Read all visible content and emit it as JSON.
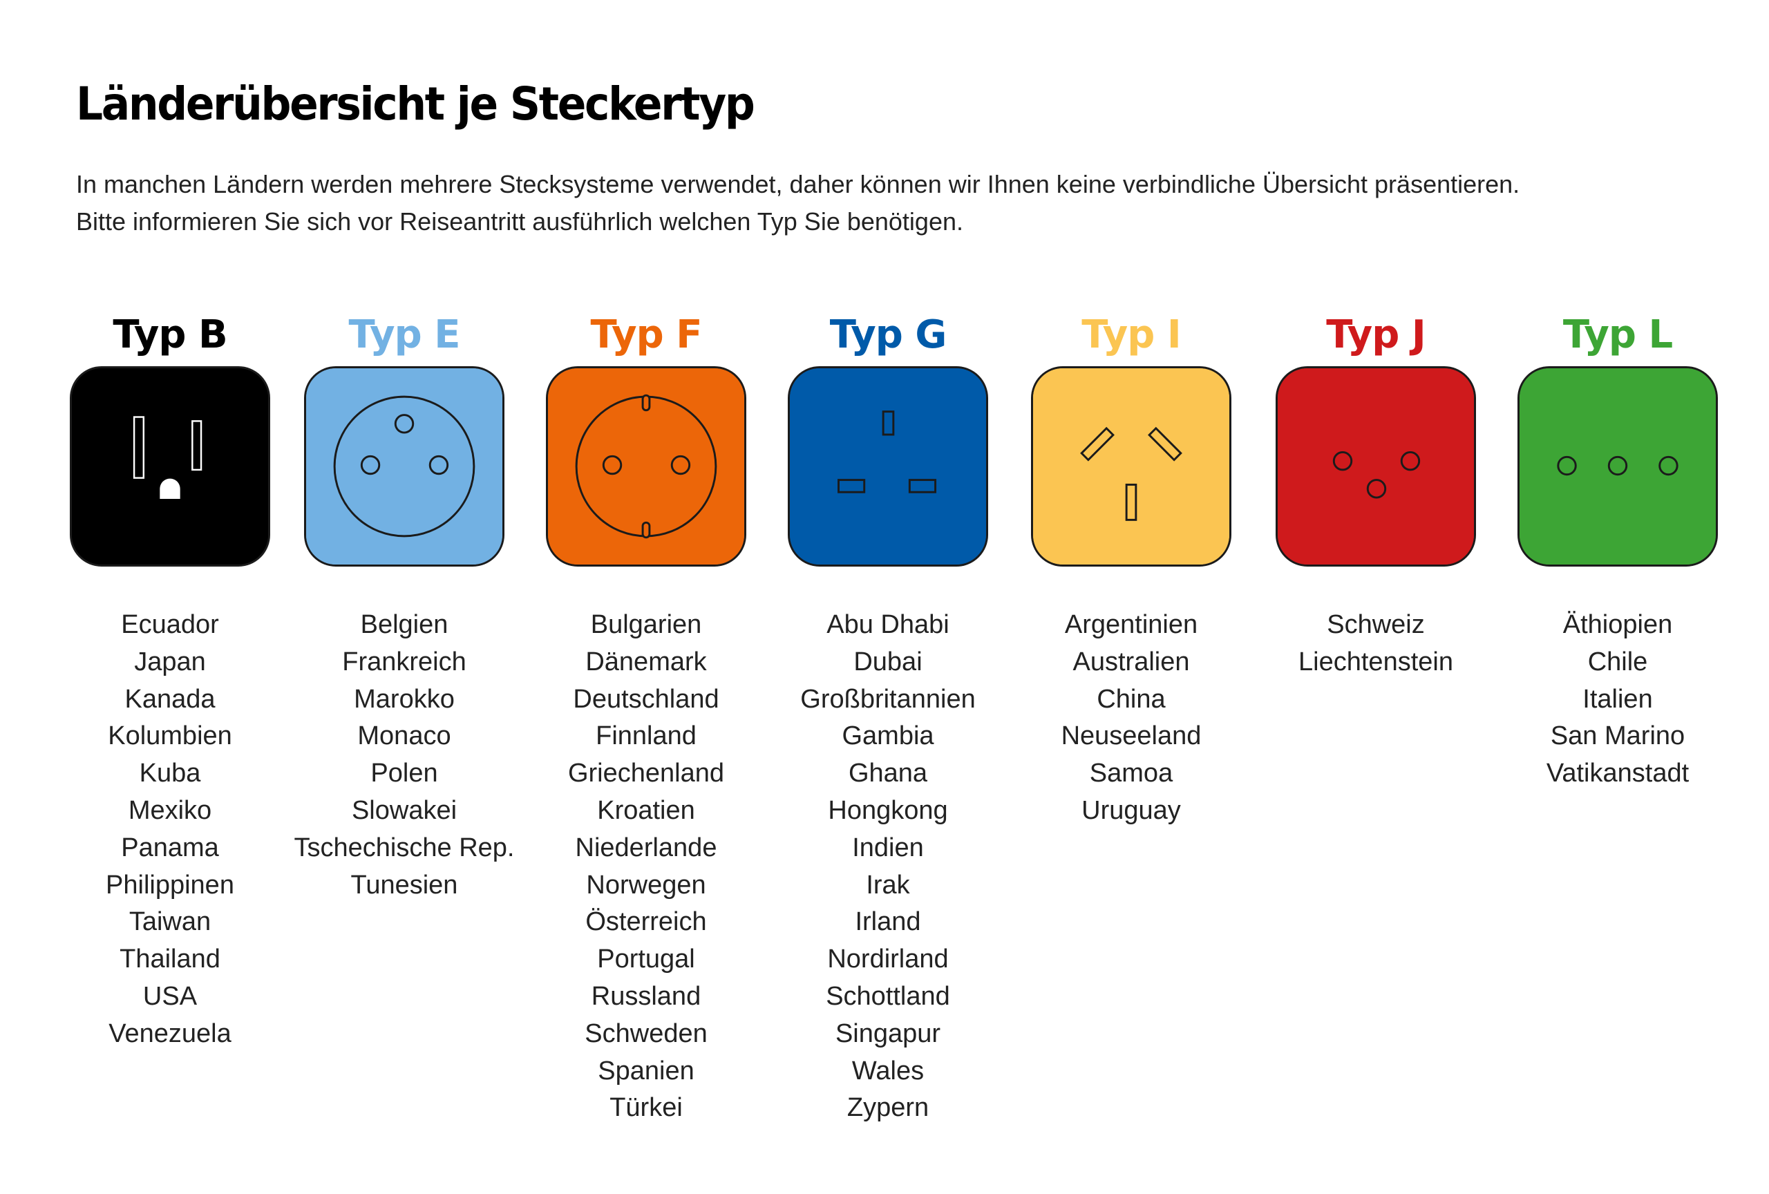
{
  "title": "Länderübersicht je Steckertyp",
  "intro": [
    "In manchen Ländern werden mehrere Stecksysteme verwendet, daher können wir Ihnen keine verbindliche Übersicht präsentieren.",
    "Bitte informieren Sie sich vor Reiseantritt ausführlich welchen Typ Sie benötigen."
  ],
  "plug_types": [
    {
      "label": "Typ B",
      "color": "#000000",
      "socket_color": "#000000",
      "countries": [
        "Ecuador",
        "Japan",
        "Kanada",
        "Kolumbien",
        "Kuba",
        "Mexiko",
        "Panama",
        "Philippinen",
        "Taiwan",
        "Thailand",
        "USA",
        "Venezuela"
      ]
    },
    {
      "label": "Typ E",
      "color": "#72b1e3",
      "socket_color": "#72b1e3",
      "countries": [
        "Belgien",
        "Frankreich",
        "Marokko",
        "Monaco",
        "Polen",
        "Slowakei",
        "Tschechische Rep.",
        "Tunesien"
      ]
    },
    {
      "label": "Typ F",
      "color": "#ec6609",
      "socket_color": "#ec6609",
      "countries": [
        "Bulgarien",
        "Dänemark",
        "Deutschland",
        "Finnland",
        "Griechenland",
        "Kroatien",
        "Niederlande",
        "Norwegen",
        "Österreich",
        "Portugal",
        "Russland",
        "Schweden",
        "Spanien",
        "Türkei"
      ]
    },
    {
      "label": "Typ G",
      "color": "#005aa9",
      "socket_color": "#005aa9",
      "countries": [
        "Abu Dhabi",
        "Dubai",
        "Großbritannien",
        "Gambia",
        "Ghana",
        "Hongkong",
        "Indien",
        "Irak",
        "Irland",
        "Nordirland",
        "Schottland",
        "Singapur",
        "Wales",
        "Zypern"
      ]
    },
    {
      "label": "Typ I",
      "color": "#fbc552",
      "socket_color": "#fbc552",
      "countries": [
        "Argentinien",
        "Australien",
        "China",
        "Neuseeland",
        "Samoa",
        "Uruguay"
      ]
    },
    {
      "label": "Typ J",
      "color": "#cf1a1c",
      "socket_color": "#cf1a1c",
      "countries": [
        "Schweiz",
        "Liechtenstein"
      ]
    },
    {
      "label": "Typ L",
      "color": "#3da535",
      "socket_color": "#3da535",
      "countries": [
        "Äthiopien",
        "Chile",
        "Italien",
        "San Marino",
        "Vatikanstadt"
      ]
    }
  ]
}
